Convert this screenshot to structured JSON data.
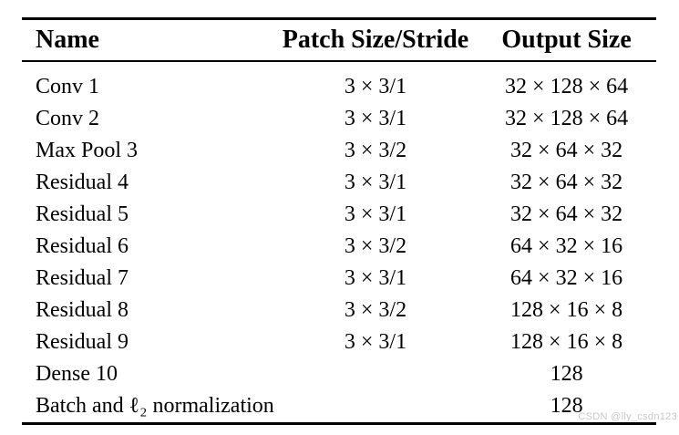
{
  "table": {
    "columns": [
      "Name",
      "Patch Size/Stride",
      "Output Size"
    ],
    "rows": [
      {
        "name": "Conv 1",
        "patch": "3 × 3/1",
        "output": "32 × 128 × 64"
      },
      {
        "name": "Conv 2",
        "patch": "3 × 3/1",
        "output": "32 × 128 × 64"
      },
      {
        "name": "Max Pool 3",
        "patch": "3 × 3/2",
        "output": "32 × 64 × 32"
      },
      {
        "name": "Residual 4",
        "patch": "3 × 3/1",
        "output": "32 × 64 × 32"
      },
      {
        "name": "Residual 5",
        "patch": "3 × 3/1",
        "output": "32 × 64 × 32"
      },
      {
        "name": "Residual 6",
        "patch": "3 × 3/2",
        "output": "64 × 32 × 16"
      },
      {
        "name": "Residual 7",
        "patch": "3 × 3/1",
        "output": "64 × 32 × 16"
      },
      {
        "name": "Residual 8",
        "patch": "3 × 3/2",
        "output": "128 × 16 × 8"
      },
      {
        "name": "Residual 9",
        "patch": "3 × 3/1",
        "output": "128 × 16 × 8"
      },
      {
        "name": "Dense 10",
        "patch": "",
        "output": "128"
      },
      {
        "name": "Batch and ℓ₂ normalization",
        "patch": "",
        "output": "128"
      }
    ]
  },
  "watermark": {
    "text": "CSDN @lly_csdn123"
  },
  "colors": {
    "background": "#ffffff",
    "text": "#000000",
    "rule": "#000000",
    "watermark": "#c9c9c9"
  }
}
